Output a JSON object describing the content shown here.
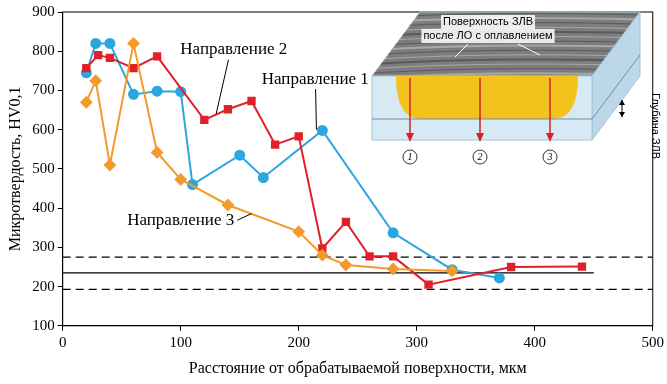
{
  "chart_data": {
    "type": "line",
    "x_label": "Расстояние от обрабатываемой поверхности, мкм",
    "y_label": "Микротвердость, HV0,1",
    "xlim": [
      0,
      500
    ],
    "xticks": [
      0,
      100,
      200,
      300,
      400,
      500
    ],
    "ylim": [
      100,
      900
    ],
    "yticks": [
      100,
      200,
      300,
      400,
      500,
      600,
      700,
      800,
      900
    ],
    "grid": false,
    "series": [
      {
        "name": "Направление 1",
        "color": "#2ba6de",
        "marker": "circle",
        "line_style": "solid",
        "x": [
          20,
          28,
          40,
          60,
          80,
          100,
          110,
          150,
          170,
          220,
          280,
          330,
          370
        ],
        "values": [
          745,
          820,
          820,
          690,
          698,
          697,
          460,
          535,
          478,
          598,
          337,
          243,
          222
        ],
        "label_x": 214,
        "label_y": 729,
        "pointer_x": 215,
        "pointer_y": 600
      },
      {
        "name": "Направление 2",
        "color": "#e0202a",
        "marker": "square",
        "line_style": "solid",
        "x": [
          20,
          30,
          40,
          60,
          80,
          120,
          140,
          160,
          180,
          200,
          220,
          240,
          260,
          280,
          310,
          380,
          440
        ],
        "values": [
          757,
          790,
          783,
          757,
          787,
          625,
          652,
          673,
          562,
          583,
          297,
          365,
          277,
          277,
          205,
          250,
          251
        ],
        "label_x": 145,
        "label_y": 804,
        "pointer_x": 130,
        "pointer_y": 640
      },
      {
        "name": "Направление 3",
        "color": "#f39a2b",
        "marker": "diamond",
        "line_style": "solid",
        "x": [
          20,
          28,
          40,
          60,
          80,
          100,
          140,
          200,
          220,
          240,
          280,
          330
        ],
        "values": [
          670,
          725,
          510,
          820,
          542,
          473,
          408,
          340,
          280,
          255,
          245,
          240
        ],
        "label_x": 100,
        "label_y": 369,
        "pointer_x": 160,
        "pointer_y": 386
      }
    ],
    "reference_lines": [
      {
        "y": 275,
        "line_style": "dashed",
        "x": [
          0,
          500
        ]
      },
      {
        "y": 235,
        "line_style": "solid",
        "x": [
          0,
          450
        ]
      },
      {
        "y": 193,
        "line_style": "dashed",
        "x": [
          0,
          500
        ]
      }
    ],
    "inset": {
      "surface_label": [
        "Поверхность ЗЛВ",
        "после ЛО с оплавлением"
      ],
      "depth_label": "Глубина ЗЛВ",
      "direction_labels": [
        "1",
        "2",
        "3"
      ]
    }
  }
}
